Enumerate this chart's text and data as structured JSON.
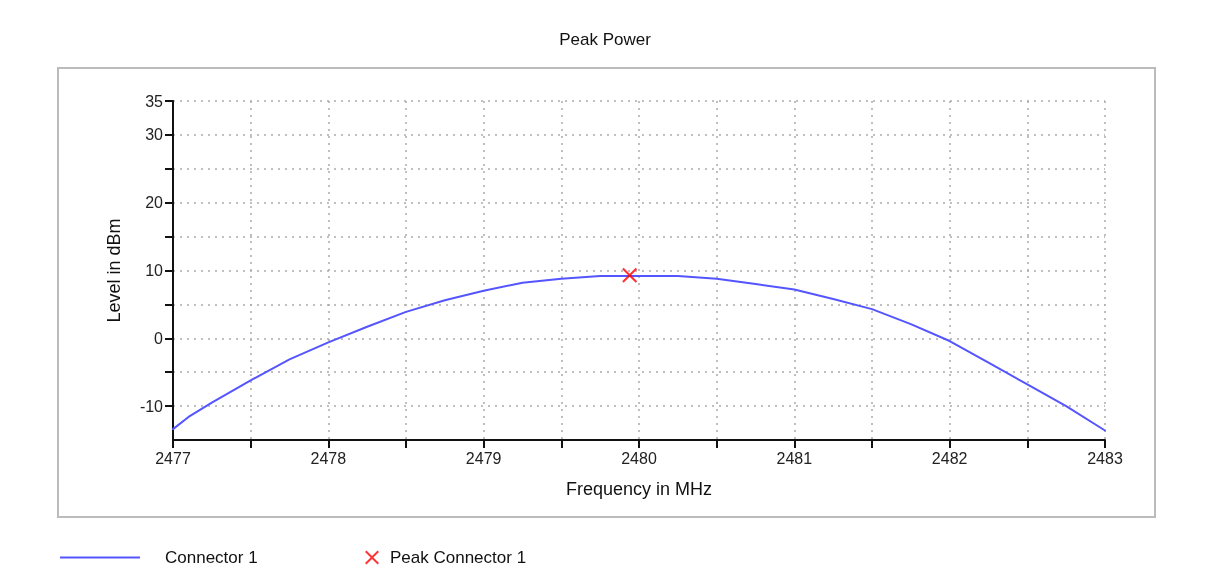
{
  "chart_data": {
    "type": "line",
    "title": "Peak Power",
    "xlabel": "Frequency in MHz",
    "ylabel": "Level in dBm",
    "xlim": [
      2477,
      2483
    ],
    "ylim": [
      -15,
      35
    ],
    "xticks": [
      2477,
      {
        "value": 2477.5,
        "label": null
      },
      2478,
      {
        "value": 2478.5,
        "label": null
      },
      2479,
      {
        "value": 2479.5,
        "label": null
      },
      2480,
      {
        "value": 2480.5,
        "label": null
      },
      2481,
      {
        "value": 2481.5,
        "label": null
      },
      2482,
      {
        "value": 2482.5,
        "label": null
      },
      2483
    ],
    "yticks": [
      -10,
      {
        "value": -5,
        "label": null
      },
      0,
      {
        "value": 5,
        "label": null
      },
      10,
      {
        "value": 15,
        "label": null
      },
      20,
      {
        "value": 25,
        "label": null
      },
      30,
      35
    ],
    "grid": true,
    "legend": "bottom",
    "series": [
      {
        "name": "Connector 1",
        "color": "#5555ff",
        "marker": "none",
        "x": [
          2477,
          2477.1,
          2477.25,
          2477.5,
          2477.75,
          2478,
          2478.25,
          2478.5,
          2478.75,
          2479,
          2479.25,
          2479.5,
          2479.75,
          2480,
          2480.25,
          2480.5,
          2480.75,
          2481,
          2481.25,
          2481.5,
          2481.75,
          2482,
          2482.25,
          2482.5,
          2482.75,
          2483
        ],
        "values": [
          -13.4,
          -11.6,
          -9.5,
          -6.2,
          -3.1,
          -0.6,
          1.7,
          3.9,
          5.6,
          7.0,
          8.2,
          8.8,
          9.2,
          9.2,
          9.2,
          8.8,
          8.0,
          7.2,
          5.8,
          4.3,
          2.1,
          -0.4,
          -3.6,
          -6.8,
          -10.0,
          -13.6
        ]
      },
      {
        "name": "Peak Connector 1",
        "type": "scatter",
        "color": "#ff0000",
        "marker": "cross",
        "x": [
          2479.94
        ],
        "values": [
          9.3
        ]
      }
    ]
  }
}
